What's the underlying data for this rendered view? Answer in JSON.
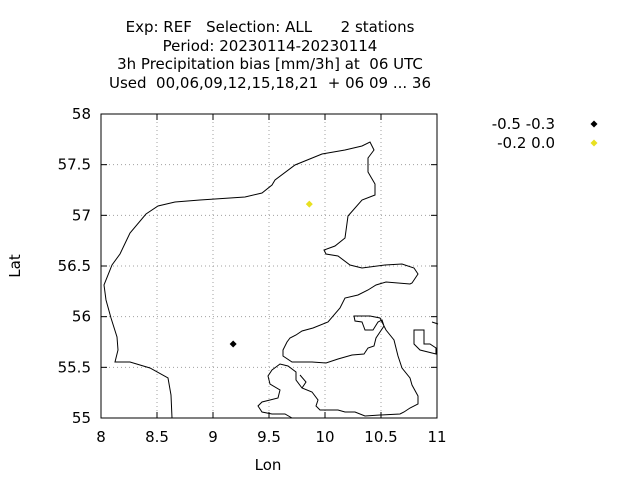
{
  "title_lines": [
    "Exp: REF   Selection: ALL      2 stations",
    "Period: 20230114-20230114",
    "3h Precipitation bias [mm/3h] at  06 UTC",
    "Used  00,06,09,12,15,18,21  + 06 09 ... 36"
  ],
  "chart_data": {
    "type": "scatter",
    "xlabel": "Lon",
    "ylabel": "Lat",
    "xlim": [
      8,
      11
    ],
    "ylim": [
      55,
      58
    ],
    "xticks": [
      "8",
      "8.5",
      "9",
      "9.5",
      "10",
      "10.5",
      "11"
    ],
    "yticks": [
      "55",
      "55.5",
      "56",
      "56.5",
      "57",
      "57.5",
      "58"
    ],
    "grid": true,
    "legend_position": "right",
    "series": [
      {
        "name": "-0.5 -0.3",
        "color": "#000000",
        "points": [
          {
            "x": 9.18,
            "y": 55.73
          }
        ]
      },
      {
        "name": "-0.2 0.0",
        "color": "#e8e020",
        "points": [
          {
            "x": 9.86,
            "y": 57.11
          }
        ]
      }
    ]
  }
}
